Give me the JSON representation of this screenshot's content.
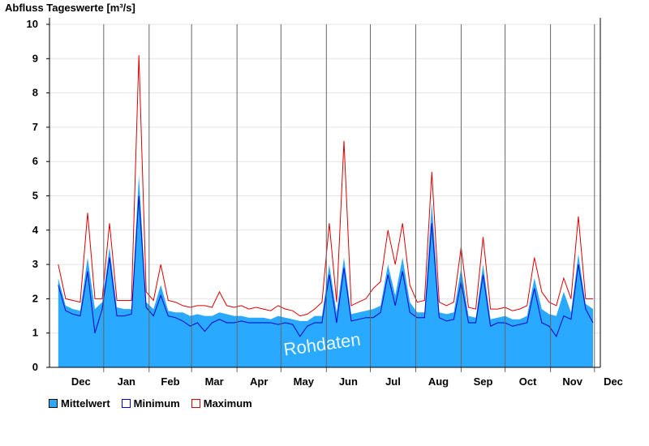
{
  "chart_data": {
    "type": "area",
    "title": "Abfluss Tageswerte [m³/s]",
    "watermark": "Rohdaten",
    "ylim": [
      0,
      10
    ],
    "yticks": [
      "0",
      "1",
      "2",
      "3",
      "4",
      "5",
      "6",
      "7",
      "8",
      "9",
      "10"
    ],
    "month_labels": [
      "Dec",
      "Jan",
      "Feb",
      "Mar",
      "Apr",
      "May",
      "Jun",
      "Jul",
      "Aug",
      "Sep",
      "Oct",
      "Nov",
      "Dec"
    ],
    "grid": true,
    "legend_position": "bottom-left",
    "colors": {
      "mean": "#29a9ff",
      "minimum": "#0000cc",
      "maximum": "#dd0000"
    },
    "x": [
      "2023-12-01",
      "2023-12-06",
      "2023-12-11",
      "2023-12-16",
      "2023-12-21",
      "2023-12-26",
      "2023-12-31",
      "2024-01-05",
      "2024-01-10",
      "2024-01-15",
      "2024-01-20",
      "2024-01-25",
      "2024-01-30",
      "2024-02-04",
      "2024-02-09",
      "2024-02-14",
      "2024-02-19",
      "2024-02-24",
      "2024-02-29",
      "2024-03-05",
      "2024-03-10",
      "2024-03-15",
      "2024-03-20",
      "2024-03-25",
      "2024-03-30",
      "2024-04-04",
      "2024-04-09",
      "2024-04-14",
      "2024-04-19",
      "2024-04-24",
      "2024-04-29",
      "2024-05-04",
      "2024-05-09",
      "2024-05-14",
      "2024-05-19",
      "2024-05-24",
      "2024-05-29",
      "2024-06-03",
      "2024-06-08",
      "2024-06-13",
      "2024-06-18",
      "2024-06-23",
      "2024-06-28",
      "2024-07-03",
      "2024-07-08",
      "2024-07-13",
      "2024-07-18",
      "2024-07-23",
      "2024-07-28",
      "2024-08-02",
      "2024-08-07",
      "2024-08-12",
      "2024-08-17",
      "2024-08-22",
      "2024-08-27",
      "2024-09-01",
      "2024-09-06",
      "2024-09-11",
      "2024-09-16",
      "2024-09-21",
      "2024-09-26",
      "2024-10-01",
      "2024-10-06",
      "2024-10-11",
      "2024-10-16",
      "2024-10-21",
      "2024-10-26",
      "2024-10-31",
      "2024-11-05",
      "2024-11-10",
      "2024-11-15",
      "2024-11-20",
      "2024-11-25",
      "2024-11-30"
    ],
    "series": [
      {
        "name": "Mittelwert",
        "values": [
          2.6,
          1.8,
          1.7,
          1.65,
          3.2,
          1.7,
          1.9,
          3.5,
          1.75,
          1.7,
          1.7,
          5.6,
          1.9,
          1.7,
          2.4,
          1.65,
          1.6,
          1.6,
          1.5,
          1.55,
          1.5,
          1.5,
          1.6,
          1.55,
          1.5,
          1.5,
          1.45,
          1.45,
          1.45,
          1.4,
          1.5,
          1.45,
          1.4,
          1.35,
          1.35,
          1.5,
          1.5,
          3.0,
          1.6,
          3.2,
          1.55,
          1.6,
          1.65,
          1.7,
          1.8,
          3.0,
          2.1,
          3.2,
          1.9,
          1.6,
          1.6,
          4.8,
          1.6,
          1.55,
          1.6,
          2.9,
          1.5,
          1.45,
          3.0,
          1.4,
          1.45,
          1.5,
          1.4,
          1.4,
          1.5,
          2.6,
          1.7,
          1.55,
          1.5,
          2.2,
          1.6,
          3.3,
          1.85,
          1.7
        ]
      },
      {
        "name": "Minimum",
        "values": [
          2.4,
          1.65,
          1.55,
          1.5,
          2.8,
          1.0,
          1.7,
          3.2,
          1.5,
          1.5,
          1.55,
          5.0,
          1.75,
          1.5,
          2.1,
          1.5,
          1.45,
          1.35,
          1.2,
          1.3,
          1.05,
          1.3,
          1.4,
          1.3,
          1.3,
          1.35,
          1.3,
          1.3,
          1.3,
          1.3,
          1.25,
          1.3,
          1.25,
          0.9,
          1.2,
          1.3,
          1.3,
          2.7,
          1.3,
          2.9,
          1.35,
          1.4,
          1.45,
          1.45,
          1.6,
          2.7,
          1.8,
          2.8,
          1.6,
          1.45,
          1.45,
          4.2,
          1.45,
          1.35,
          1.4,
          2.5,
          1.3,
          1.3,
          2.7,
          1.2,
          1.3,
          1.3,
          1.2,
          1.25,
          1.3,
          2.3,
          1.3,
          1.2,
          0.9,
          1.5,
          1.4,
          3.0,
          1.7,
          1.3
        ]
      },
      {
        "name": "Maximum",
        "values": [
          3.0,
          2.0,
          1.95,
          1.9,
          4.5,
          2.0,
          2.0,
          4.2,
          1.95,
          1.95,
          1.95,
          9.1,
          2.2,
          1.95,
          3.0,
          1.95,
          1.9,
          1.8,
          1.75,
          1.8,
          1.8,
          1.75,
          2.2,
          1.8,
          1.75,
          1.8,
          1.7,
          1.75,
          1.7,
          1.65,
          1.8,
          1.7,
          1.65,
          1.5,
          1.55,
          1.7,
          1.9,
          4.2,
          1.9,
          6.6,
          1.8,
          1.9,
          2.0,
          2.3,
          2.5,
          4.0,
          3.0,
          4.2,
          2.4,
          1.9,
          1.95,
          5.7,
          1.9,
          1.8,
          1.9,
          3.5,
          1.75,
          1.7,
          3.8,
          1.7,
          1.7,
          1.75,
          1.65,
          1.7,
          1.8,
          3.2,
          2.2,
          1.9,
          1.8,
          2.6,
          2.0,
          4.4,
          2.0,
          2.0
        ]
      }
    ]
  },
  "legend": {
    "mean_label": "Mittelwert",
    "min_label": "Minimum",
    "max_label": "Maximum"
  }
}
